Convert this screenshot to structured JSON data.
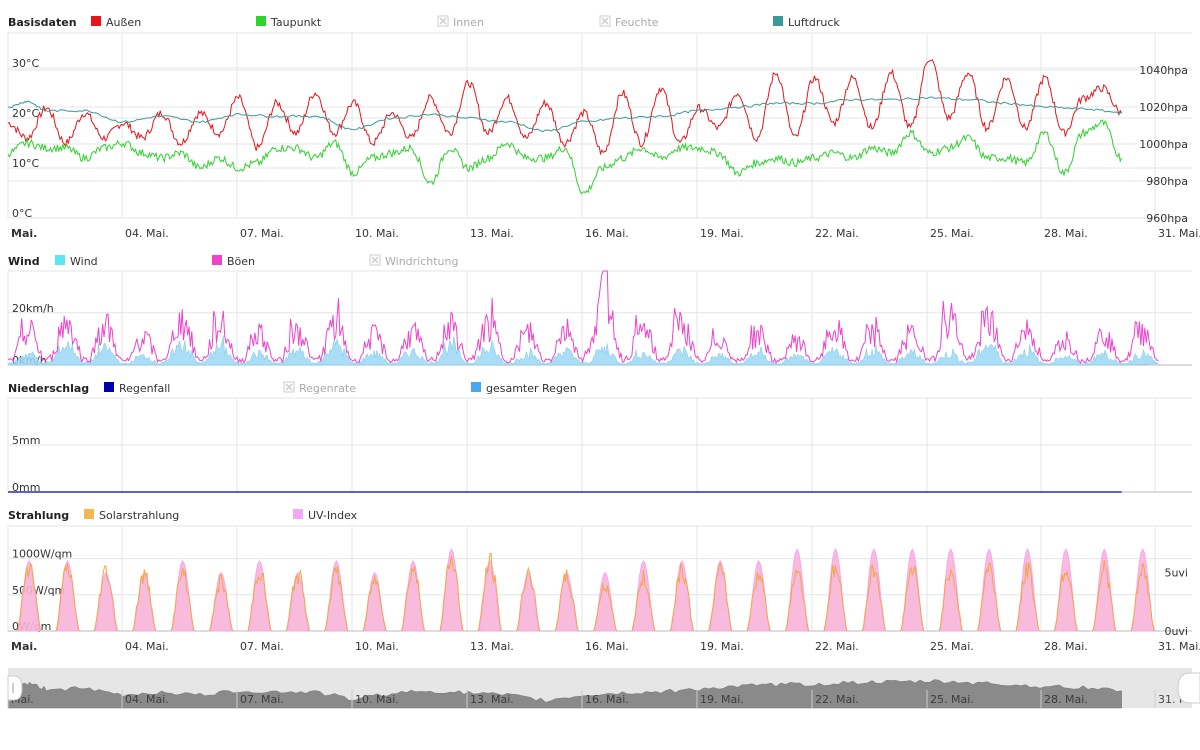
{
  "x_ticks": [
    "Mai.",
    "04. Mai.",
    "07. Mai.",
    "10. Mai.",
    "13. Mai.",
    "16. Mai.",
    "19. Mai.",
    "22. Mai.",
    "25. Mai.",
    "28. Mai.",
    "31. Mai."
  ],
  "navigator": {
    "ticks": [
      "Mai.",
      "04. Mai.",
      "07. Mai.",
      "10. Mai.",
      "13. Mai.",
      "16. Mai.",
      "19. Mai.",
      "22. Mai.",
      "25. Mai.",
      "28. Mai.",
      "31. Mai."
    ]
  },
  "colors": {
    "aussen": "#e8141c",
    "taupunkt": "#2fd22f",
    "luftdruck": "#3a9a9a",
    "wind": "#9bd8f6",
    "boeen": "#ee44cc",
    "regenfall": "#0000aa",
    "gesamter_regen": "#4aa8ee",
    "solar": "#f4a640",
    "uv": "#f6a6f6",
    "disabled": "#cccccc"
  },
  "chart_data": [
    {
      "type": "line",
      "title": "Basisdaten",
      "legend": [
        {
          "name": "Außen",
          "color": "#e8141c",
          "enabled": true
        },
        {
          "name": "Taupunkt",
          "color": "#2fd22f",
          "enabled": true
        },
        {
          "name": "Innen",
          "color": "#cccccc",
          "enabled": false
        },
        {
          "name": "Feuchte",
          "color": "#cccccc",
          "enabled": false
        },
        {
          "name": "Luftdruck",
          "color": "#3a9a9a",
          "enabled": true
        }
      ],
      "y_left_ticks": [
        "0°C",
        "10°C",
        "20°C",
        "30°C"
      ],
      "y_right_ticks": [
        "960hpa",
        "980hpa",
        "1000hpa",
        "1020hpa",
        "1040hpa"
      ],
      "ylim_left": [
        0,
        37
      ],
      "ylim_right": [
        960,
        1060
      ],
      "x_range_days": [
        1,
        31
      ],
      "series": [
        {
          "name": "Außen",
          "axis": "left",
          "points": [
            [
              1,
              19
            ],
            [
              1.5,
              16
            ],
            [
              2,
              22
            ],
            [
              2.5,
              15
            ],
            [
              3,
              21
            ],
            [
              3.5,
              16
            ],
            [
              4,
              19
            ],
            [
              4.5,
              16
            ],
            [
              5,
              21
            ],
            [
              5.5,
              15
            ],
            [
              6,
              21
            ],
            [
              6.5,
              17
            ],
            [
              7,
              24
            ],
            [
              7.5,
              14
            ],
            [
              8,
              23
            ],
            [
              8.5,
              17
            ],
            [
              9,
              25
            ],
            [
              9.5,
              17
            ],
            [
              10,
              23
            ],
            [
              10.5,
              15
            ],
            [
              11,
              21
            ],
            [
              11.5,
              16
            ],
            [
              12,
              24
            ],
            [
              12.5,
              17
            ],
            [
              13,
              27
            ],
            [
              13.5,
              17
            ],
            [
              14,
              24
            ],
            [
              14.5,
              16
            ],
            [
              15,
              23
            ],
            [
              15.5,
              15
            ],
            [
              16,
              21
            ],
            [
              16.5,
              13
            ],
            [
              17,
              25
            ],
            [
              17.5,
              15
            ],
            [
              18,
              26
            ],
            [
              18.5,
              15
            ],
            [
              19,
              22
            ],
            [
              19.5,
              18
            ],
            [
              20,
              25
            ],
            [
              20.5,
              16
            ],
            [
              21,
              29
            ],
            [
              21.5,
              16
            ],
            [
              22,
              28
            ],
            [
              22.5,
              19
            ],
            [
              23,
              28
            ],
            [
              23.5,
              18
            ],
            [
              24,
              29
            ],
            [
              24.5,
              18
            ],
            [
              25,
              32
            ],
            [
              25.5,
              20
            ],
            [
              26,
              29
            ],
            [
              26.5,
              18
            ],
            [
              27,
              28
            ],
            [
              27.5,
              18
            ],
            [
              28,
              28
            ],
            [
              28.5,
              17
            ],
            [
              29,
              24
            ],
            [
              29.5,
              26
            ],
            [
              30,
              21
            ]
          ]
        },
        {
          "name": "Taupunkt",
          "axis": "left",
          "points": [
            [
              1,
              13
            ],
            [
              1.5,
              15
            ],
            [
              2,
              14
            ],
            [
              2.5,
              14
            ],
            [
              3,
              12
            ],
            [
              3.5,
              14
            ],
            [
              4,
              15
            ],
            [
              4.5,
              13
            ],
            [
              5,
              12
            ],
            [
              5.5,
              13
            ],
            [
              6,
              10
            ],
            [
              6.5,
              12
            ],
            [
              7,
              10
            ],
            [
              7.5,
              11
            ],
            [
              8,
              14
            ],
            [
              8.5,
              14
            ],
            [
              9,
              12
            ],
            [
              9.5,
              15
            ],
            [
              10,
              9
            ],
            [
              10.5,
              12
            ],
            [
              11,
              13
            ],
            [
              11.5,
              14
            ],
            [
              12,
              7
            ],
            [
              12.5,
              14
            ],
            [
              13,
              10
            ],
            [
              13.5,
              12
            ],
            [
              14,
              15
            ],
            [
              14.5,
              12
            ],
            [
              15,
              12
            ],
            [
              15.5,
              14
            ],
            [
              16,
              5
            ],
            [
              16.5,
              10
            ],
            [
              17,
              12
            ],
            [
              17.5,
              14
            ],
            [
              18,
              12
            ],
            [
              18.5,
              14
            ],
            [
              19,
              14
            ],
            [
              19.5,
              13
            ],
            [
              20,
              9
            ],
            [
              20.5,
              11
            ],
            [
              21,
              12
            ],
            [
              21.5,
              11
            ],
            [
              22,
              12
            ],
            [
              22.5,
              13
            ],
            [
              23,
              12
            ],
            [
              23.5,
              14
            ],
            [
              24,
              13
            ],
            [
              24.5,
              17
            ],
            [
              25,
              13
            ],
            [
              25.5,
              14
            ],
            [
              26,
              16
            ],
            [
              26.5,
              12
            ],
            [
              27,
              12
            ],
            [
              27.5,
              11
            ],
            [
              28,
              17
            ],
            [
              28.5,
              9
            ],
            [
              29,
              17
            ],
            [
              29.5,
              19
            ],
            [
              30,
              12
            ]
          ]
        },
        {
          "name": "Luftdruck",
          "axis": "right",
          "points": [
            [
              1,
              1020
            ],
            [
              1.5,
              1023
            ],
            [
              2,
              1018
            ],
            [
              3,
              1018
            ],
            [
              4,
              1012
            ],
            [
              5,
              1015
            ],
            [
              6,
              1012
            ],
            [
              7,
              1016
            ],
            [
              8,
              1015
            ],
            [
              9,
              1015
            ],
            [
              10,
              1008
            ],
            [
              11,
              1014
            ],
            [
              12,
              1016
            ],
            [
              13,
              1014
            ],
            [
              14,
              1012
            ],
            [
              15,
              1007
            ],
            [
              16,
              1012
            ],
            [
              17,
              1014
            ],
            [
              18,
              1015
            ],
            [
              19,
              1018
            ],
            [
              20,
              1020
            ],
            [
              21,
              1022
            ],
            [
              22,
              1022
            ],
            [
              23,
              1024
            ],
            [
              24,
              1024
            ],
            [
              25,
              1025
            ],
            [
              26,
              1024
            ],
            [
              27,
              1022
            ],
            [
              28,
              1020
            ],
            [
              29,
              1019
            ],
            [
              30,
              1017
            ]
          ]
        }
      ]
    },
    {
      "type": "area",
      "title": "Wind",
      "legend": [
        {
          "name": "Wind",
          "color": "#9bd8f6",
          "enabled": true
        },
        {
          "name": "Böen",
          "color": "#ee44cc",
          "enabled": true
        },
        {
          "name": "Windrichtung",
          "color": "#cccccc",
          "enabled": false
        }
      ],
      "y_left_ticks": [
        "0km/h",
        "20km/h"
      ],
      "ylim": [
        0,
        36
      ],
      "x_range_days": [
        1,
        31
      ],
      "series": [
        {
          "name": "Wind",
          "daily_max": [
            5,
            9,
            7,
            4,
            9,
            8,
            5,
            6,
            9,
            5,
            6,
            8,
            7,
            5,
            6,
            7,
            5,
            6,
            4,
            5,
            4,
            6,
            6,
            5,
            5,
            9,
            6,
            4,
            5,
            5
          ]
        },
        {
          "name": "Böen",
          "daily_max": [
            15,
            19,
            17,
            12,
            20,
            18,
            14,
            16,
            18,
            13,
            14,
            17,
            18,
            14,
            16,
            34,
            16,
            19,
            12,
            14,
            11,
            16,
            14,
            14,
            22,
            20,
            16,
            12,
            14,
            16
          ]
        }
      ]
    },
    {
      "type": "line",
      "title": "Niederschlag",
      "legend": [
        {
          "name": "Regenfall",
          "color": "#0000aa",
          "enabled": true
        },
        {
          "name": "Regenrate",
          "color": "#cccccc",
          "enabled": false
        },
        {
          "name": "gesamter Regen",
          "color": "#4aa8ee",
          "enabled": true
        }
      ],
      "y_left_ticks": [
        "0mm",
        "5mm"
      ],
      "ylim": [
        0,
        10
      ],
      "x_range_days": [
        1,
        31
      ],
      "series": [
        {
          "name": "Regenfall",
          "points": [
            [
              1,
              0
            ],
            [
              30,
              0
            ]
          ]
        }
      ]
    },
    {
      "type": "area",
      "title": "Strahlung",
      "legend": [
        {
          "name": "Solarstrahlung",
          "color": "#f4a640",
          "enabled": true
        },
        {
          "name": "UV-Index",
          "color": "#f6a6f6",
          "enabled": true
        }
      ],
      "y_left_ticks": [
        "0W/qm",
        "500W/qm",
        "1000W/qm"
      ],
      "y_right_ticks": [
        "0uvi",
        "5uvi"
      ],
      "ylim_left": [
        0,
        1450
      ],
      "ylim_right": [
        0,
        9
      ],
      "x_range_days": [
        1,
        31
      ],
      "series": [
        {
          "name": "Solarstrahlung",
          "daily_peak": [
            1000,
            950,
            920,
            850,
            880,
            760,
            920,
            860,
            880,
            780,
            960,
            1120,
            1050,
            900,
            820,
            700,
            800,
            960,
            920,
            880,
            930,
            950,
            960,
            940,
            950,
            970,
            930,
            940,
            950,
            920
          ]
        },
        {
          "name": "UV-Index",
          "daily_peak": [
            6,
            6,
            5,
            5,
            6,
            5,
            6,
            5,
            6,
            5,
            6,
            7,
            6,
            5,
            5,
            5,
            6,
            6,
            6,
            6,
            7,
            7,
            7,
            7,
            7,
            7,
            7,
            7,
            7,
            7
          ]
        }
      ]
    }
  ]
}
